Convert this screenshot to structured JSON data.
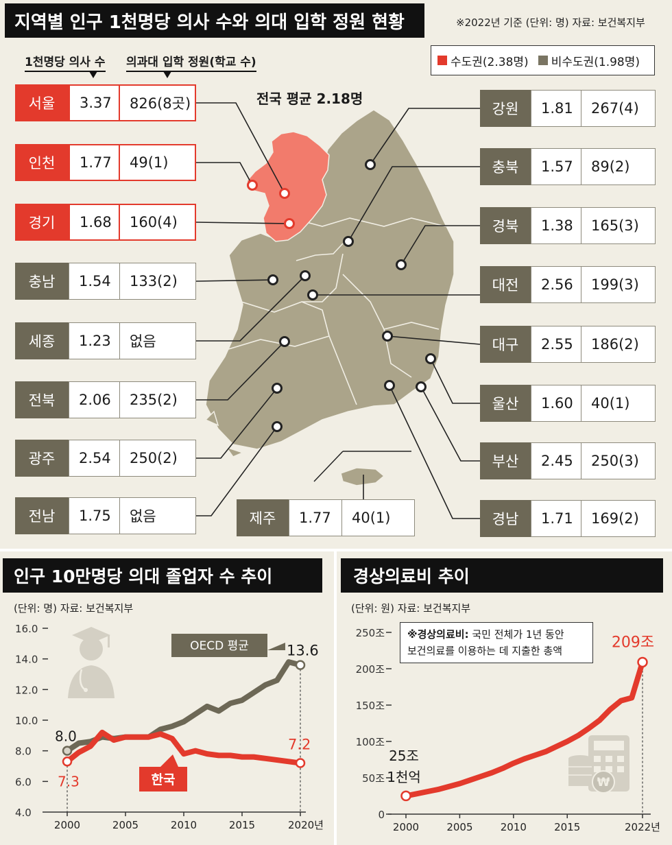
{
  "map_section": {
    "title": "지역별 인구 1천명당 의사 수와 의대 입학 정원 현황",
    "note": "※2022년 기준 (단위: 명) 자료: 보건복지부",
    "col_header_doctors": "1천명당 의사 수",
    "col_header_quota": "의과대 입학 정원(학교 수)",
    "national_average": "전국 평균 2.18명",
    "legend": [
      {
        "label": "수도권(2.38명)",
        "color": "#e33a2c"
      },
      {
        "label": "비수도권(1.98명)",
        "color": "#7a7563"
      }
    ],
    "left_regions": [
      {
        "name": "서울",
        "doctors": "3.37",
        "quota": "826(8곳)",
        "capital": true
      },
      {
        "name": "인천",
        "doctors": "1.77",
        "quota": "49(1)",
        "capital": true
      },
      {
        "name": "경기",
        "doctors": "1.68",
        "quota": "160(4)",
        "capital": true
      },
      {
        "name": "충남",
        "doctors": "1.54",
        "quota": "133(2)",
        "capital": false
      },
      {
        "name": "세종",
        "doctors": "1.23",
        "quota": "없음",
        "capital": false
      },
      {
        "name": "전북",
        "doctors": "2.06",
        "quota": "235(2)",
        "capital": false
      },
      {
        "name": "광주",
        "doctors": "2.54",
        "quota": "250(2)",
        "capital": false
      },
      {
        "name": "전남",
        "doctors": "1.75",
        "quota": "없음",
        "capital": false
      }
    ],
    "right_regions": [
      {
        "name": "강원",
        "doctors": "1.81",
        "quota": "267(4)"
      },
      {
        "name": "충북",
        "doctors": "1.57",
        "quota": "89(2)"
      },
      {
        "name": "경북",
        "doctors": "1.38",
        "quota": "165(3)"
      },
      {
        "name": "대전",
        "doctors": "2.56",
        "quota": "199(3)"
      },
      {
        "name": "대구",
        "doctors": "2.55",
        "quota": "186(2)"
      },
      {
        "name": "울산",
        "doctors": "1.60",
        "quota": "40(1)"
      },
      {
        "name": "부산",
        "doctors": "2.45",
        "quota": "250(3)"
      },
      {
        "name": "경남",
        "doctors": "1.71",
        "quota": "169(2)"
      }
    ],
    "jeju": {
      "name": "제주",
      "doctors": "1.77",
      "quota": "40(1)"
    }
  },
  "chart_data": [
    {
      "type": "line",
      "title": "인구 10만명당 의대 졸업자 수 추이",
      "unit_note": "(단위: 명) 자료: 보건복지부",
      "ylim": [
        4.0,
        16.0
      ],
      "yticks": [
        "16.0",
        "14.0",
        "12.0",
        "10.0",
        "8.0",
        "6.0",
        "4.0"
      ],
      "xticks": [
        "2000",
        "2005",
        "2010",
        "2015",
        "2020년"
      ],
      "series": [
        {
          "name": "OECD 평균",
          "color": "#6d6856",
          "x": [
            2000,
            2001,
            2002,
            2003,
            2004,
            2005,
            2006,
            2007,
            2008,
            2009,
            2010,
            2011,
            2012,
            2013,
            2014,
            2015,
            2016,
            2017,
            2018,
            2019,
            2020
          ],
          "values": [
            8.0,
            8.5,
            8.6,
            8.9,
            8.8,
            8.9,
            8.9,
            8.9,
            9.4,
            9.6,
            9.9,
            10.4,
            10.9,
            10.6,
            11.1,
            11.3,
            11.8,
            12.3,
            12.6,
            13.8,
            13.6
          ]
        },
        {
          "name": "한국",
          "color": "#e33a2c",
          "x": [
            2000,
            2001,
            2002,
            2003,
            2004,
            2005,
            2006,
            2007,
            2008,
            2009,
            2010,
            2011,
            2012,
            2013,
            2014,
            2015,
            2016,
            2017,
            2018,
            2019,
            2020
          ],
          "values": [
            7.3,
            7.9,
            8.3,
            9.2,
            8.7,
            8.9,
            8.9,
            8.9,
            9.1,
            8.8,
            7.8,
            8.0,
            7.8,
            7.7,
            7.7,
            7.6,
            7.6,
            7.5,
            7.4,
            7.3,
            7.2
          ]
        }
      ],
      "annotations": {
        "oecd_start": "8.0",
        "oecd_end": "13.6",
        "korea_start": "7.3",
        "korea_end": "7.2"
      }
    },
    {
      "type": "line",
      "title": "경상의료비 추이",
      "unit_note": "(단위: 원) 자료: 보건복지부",
      "definition_label": "※경상의료비:",
      "definition_text_1": "국민 전체가 1년 동안",
      "definition_text_2": "보건의료를 이용하는 데 지출한 총액",
      "ylim": [
        0,
        250
      ],
      "yticks": [
        "250조",
        "200조",
        "150조",
        "100조",
        "50조",
        "0"
      ],
      "xticks": [
        "2000",
        "2005",
        "2010",
        "2015",
        "2022년"
      ],
      "series": [
        {
          "name": "경상의료비",
          "color": "#e33a2c",
          "x": [
            2000,
            2001,
            2002,
            2003,
            2004,
            2005,
            2006,
            2007,
            2008,
            2009,
            2010,
            2011,
            2012,
            2013,
            2014,
            2015,
            2016,
            2017,
            2018,
            2019,
            2020,
            2021,
            2022
          ],
          "values": [
            25.1,
            28,
            31,
            34,
            38,
            42,
            47,
            52,
            57,
            63,
            70,
            76,
            81,
            86,
            93,
            100,
            108,
            118,
            129,
            144,
            156,
            160,
            209
          ]
        }
      ],
      "annotations": {
        "start_line1": "25조",
        "start_line2": "1천억",
        "end": "209조"
      }
    }
  ]
}
